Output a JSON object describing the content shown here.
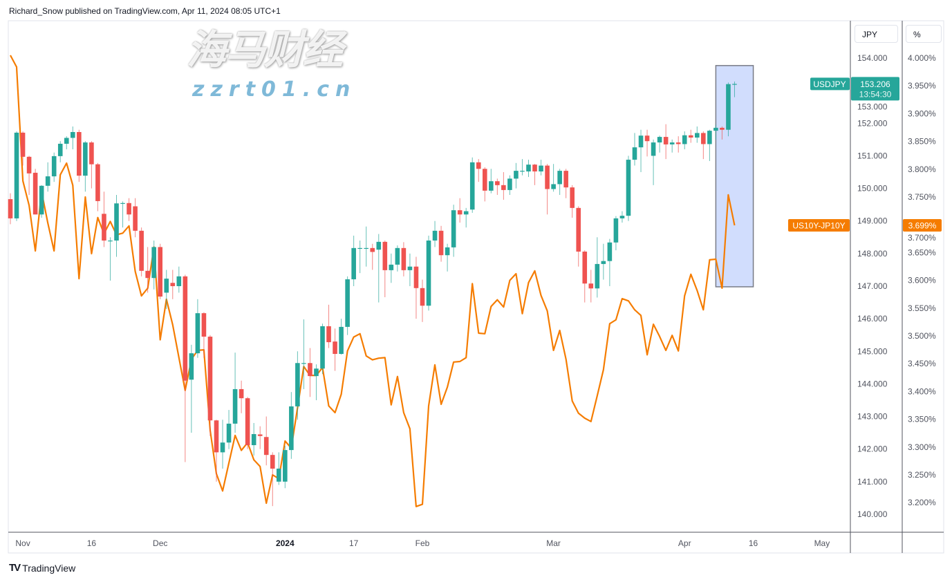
{
  "header": {
    "published": "Richard_Snow published on TradingView.com, Apr 11, 2024 08:05 UTC+1"
  },
  "footer": {
    "brand": "TradingView",
    "logo": "TV"
  },
  "watermark": {
    "cn": "海马财经",
    "url": "zzrt01.cn"
  },
  "colors": {
    "up": "#26a69a",
    "down": "#ef5350",
    "spread_line": "#f57c00",
    "range_fill": "#d1ddfd",
    "range_border": "#787b86"
  },
  "chart_data": {
    "type": "candlestick+line",
    "timeframe": "1D",
    "grid": false,
    "series": [
      {
        "name": "USDJPY",
        "type": "candlestick",
        "axis": "JPY",
        "last_price_label": "153.206",
        "countdown": "13:54:30"
      },
      {
        "name": "US10Y-JP10Y",
        "type": "line",
        "axis": "%",
        "last_value_label": "3.699%"
      }
    ],
    "axes": {
      "left_price": {
        "unit": "JPY",
        "range": [
          140,
          154
        ],
        "ticks": [
          "154.000",
          "153.000",
          "152.000",
          "151.000",
          "150.000",
          "149.000",
          "148.000",
          "147.000",
          "146.000",
          "145.000",
          "144.000",
          "143.000",
          "142.000",
          "141.000",
          "140.000"
        ]
      },
      "right_pct": {
        "unit": "%",
        "range": [
          3.2,
          4.0
        ],
        "ticks": [
          "4.000%",
          "3.950%",
          "3.900%",
          "3.850%",
          "3.800%",
          "3.750%",
          "3.700%",
          "3.650%",
          "3.600%",
          "3.550%",
          "3.500%",
          "3.450%",
          "3.400%",
          "3.350%",
          "3.300%",
          "3.250%",
          "3.200%"
        ]
      },
      "time_ticks": [
        {
          "label": "Nov",
          "date": "2023-11-01"
        },
        {
          "label": "16",
          "date": "2023-11-16"
        },
        {
          "label": "Dec",
          "date": "2023-12-01"
        },
        {
          "label": "2024",
          "date": "2024-01-02",
          "bold": true
        },
        {
          "label": "17",
          "date": "2024-01-17"
        },
        {
          "label": "Feb",
          "date": "2024-02-01"
        },
        {
          "label": "Mar",
          "date": "2024-03-01"
        },
        {
          "label": "Apr",
          "date": "2024-04-01"
        },
        {
          "label": "16",
          "date": "2024-04-16"
        },
        {
          "label": "May",
          "date": "2024-05-01"
        }
      ]
    },
    "range_box": {
      "from": "2024-04-08",
      "to": "2024-04-16",
      "price_top": 153.77,
      "price_bottom": 146.98
    },
    "dates": [
      "2023-10-30",
      "2023-10-31",
      "2023-11-01",
      "2023-11-02",
      "2023-11-03",
      "2023-11-06",
      "2023-11-07",
      "2023-11-08",
      "2023-11-09",
      "2023-11-10",
      "2023-11-13",
      "2023-11-14",
      "2023-11-15",
      "2023-11-16",
      "2023-11-17",
      "2023-11-20",
      "2023-11-21",
      "2023-11-22",
      "2023-11-23",
      "2023-11-24",
      "2023-11-27",
      "2023-11-28",
      "2023-11-29",
      "2023-11-30",
      "2023-12-01",
      "2023-12-04",
      "2023-12-05",
      "2023-12-06",
      "2023-12-07",
      "2023-12-08",
      "2023-12-11",
      "2023-12-12",
      "2023-12-13",
      "2023-12-14",
      "2023-12-15",
      "2023-12-18",
      "2023-12-19",
      "2023-12-20",
      "2023-12-21",
      "2023-12-22",
      "2023-12-26",
      "2023-12-27",
      "2023-12-28",
      "2023-12-29",
      "2024-01-02",
      "2024-01-03",
      "2024-01-04",
      "2024-01-05",
      "2024-01-08",
      "2024-01-09",
      "2024-01-10",
      "2024-01-11",
      "2024-01-12",
      "2024-01-15",
      "2024-01-16",
      "2024-01-17",
      "2024-01-18",
      "2024-01-19",
      "2024-01-22",
      "2024-01-23",
      "2024-01-24",
      "2024-01-25",
      "2024-01-26",
      "2024-01-29",
      "2024-01-30",
      "2024-01-31",
      "2024-02-01",
      "2024-02-02",
      "2024-02-05",
      "2024-02-06",
      "2024-02-07",
      "2024-02-08",
      "2024-02-09",
      "2024-02-12",
      "2024-02-13",
      "2024-02-14",
      "2024-02-15",
      "2024-02-16",
      "2024-02-19",
      "2024-02-20",
      "2024-02-21",
      "2024-02-22",
      "2024-02-23",
      "2024-02-26",
      "2024-02-27",
      "2024-02-28",
      "2024-02-29",
      "2024-03-01",
      "2024-03-04",
      "2024-03-05",
      "2024-03-06",
      "2024-03-07",
      "2024-03-08",
      "2024-03-11",
      "2024-03-12",
      "2024-03-13",
      "2024-03-14",
      "2024-03-15",
      "2024-03-18",
      "2024-03-19",
      "2024-03-20",
      "2024-03-21",
      "2024-03-22",
      "2024-03-25",
      "2024-03-26",
      "2024-03-27",
      "2024-03-28",
      "2024-03-29",
      "2024-04-01",
      "2024-04-02",
      "2024-04-03",
      "2024-04-04",
      "2024-04-05",
      "2024-04-08",
      "2024-04-09",
      "2024-04-10",
      "2024-04-11"
    ],
    "usdjpy_ohlc": [
      [
        149.67,
        149.85,
        148.9,
        149.08
      ],
      [
        149.08,
        151.75,
        149.0,
        151.71
      ],
      [
        151.71,
        151.75,
        150.7,
        150.97
      ],
      [
        150.97,
        151.0,
        149.8,
        150.46
      ],
      [
        150.48,
        150.6,
        149.2,
        149.2
      ],
      [
        149.2,
        150.1,
        149.1,
        150.08
      ],
      [
        150.08,
        150.8,
        149.9,
        150.37
      ],
      [
        150.37,
        151.1,
        150.2,
        150.99
      ],
      [
        150.99,
        151.45,
        150.8,
        151.37
      ],
      [
        151.37,
        151.6,
        151.2,
        151.55
      ],
      [
        151.55,
        151.9,
        151.2,
        151.73
      ],
      [
        151.73,
        151.8,
        150.2,
        150.39
      ],
      [
        150.39,
        151.45,
        149.9,
        151.41
      ],
      [
        151.41,
        151.45,
        150.0,
        150.74
      ],
      [
        150.74,
        150.78,
        149.3,
        149.61
      ],
      [
        149.22,
        149.9,
        148.2,
        148.4
      ],
      [
        148.4,
        148.5,
        147.17,
        148.4
      ],
      [
        148.4,
        149.8,
        147.9,
        149.54
      ],
      [
        149.55,
        149.6,
        148.8,
        149.55
      ],
      [
        149.55,
        149.7,
        149.0,
        149.2
      ],
      [
        149.45,
        149.7,
        148.5,
        148.7
      ],
      [
        148.7,
        148.8,
        147.3,
        147.47
      ],
      [
        147.47,
        148.2,
        146.8,
        147.25
      ],
      [
        147.25,
        148.4,
        146.9,
        148.2
      ],
      [
        148.2,
        148.3,
        146.6,
        146.68
      ],
      [
        146.8,
        147.5,
        146.3,
        147.23
      ],
      [
        147.1,
        147.5,
        146.6,
        147.0
      ],
      [
        147.0,
        147.6,
        146.8,
        147.3
      ],
      [
        147.3,
        147.35,
        141.6,
        144.1
      ],
      [
        144.13,
        145.2,
        142.5,
        144.94
      ],
      [
        144.94,
        146.6,
        144.8,
        146.17
      ],
      [
        146.17,
        146.2,
        144.8,
        145.45
      ],
      [
        145.45,
        145.5,
        142.4,
        142.88
      ],
      [
        142.88,
        142.9,
        141.0,
        141.9
      ],
      [
        141.9,
        142.9,
        141.4,
        142.2
      ],
      [
        142.2,
        143.2,
        142.0,
        142.78
      ],
      [
        142.78,
        144.96,
        142.5,
        143.84
      ],
      [
        143.84,
        144.1,
        143.1,
        143.56
      ],
      [
        143.56,
        143.6,
        142.0,
        142.12
      ],
      [
        142.12,
        142.8,
        141.8,
        142.46
      ],
      [
        142.45,
        142.7,
        142.0,
        142.4
      ],
      [
        142.37,
        143.0,
        141.5,
        141.82
      ],
      [
        141.82,
        141.9,
        140.25,
        141.4
      ],
      [
        141.0,
        141.9,
        140.9,
        141.4
      ],
      [
        141.0,
        142.1,
        140.8,
        141.97
      ],
      [
        141.97,
        143.75,
        141.7,
        143.31
      ],
      [
        143.31,
        145.0,
        142.9,
        144.64
      ],
      [
        144.64,
        145.98,
        143.84,
        144.64
      ],
      [
        144.64,
        145.1,
        143.6,
        144.24
      ],
      [
        144.24,
        144.6,
        143.5,
        144.47
      ],
      [
        144.47,
        145.85,
        144.3,
        145.77
      ],
      [
        145.77,
        146.43,
        145.1,
        145.28
      ],
      [
        145.3,
        145.7,
        144.4,
        144.92
      ],
      [
        144.92,
        146.0,
        144.9,
        145.75
      ],
      [
        145.75,
        147.3,
        145.5,
        147.21
      ],
      [
        147.21,
        148.55,
        147.0,
        148.17
      ],
      [
        148.17,
        148.4,
        147.4,
        148.17
      ],
      [
        148.17,
        148.83,
        147.6,
        148.17
      ],
      [
        148.17,
        148.3,
        147.5,
        148.05
      ],
      [
        148.12,
        148.6,
        146.5,
        148.36
      ],
      [
        148.36,
        148.4,
        146.66,
        147.49
      ],
      [
        147.49,
        148.0,
        147.1,
        147.66
      ],
      [
        147.66,
        148.25,
        147.45,
        148.17
      ],
      [
        148.17,
        148.35,
        147.3,
        147.49
      ],
      [
        147.49,
        148.0,
        147.0,
        147.6
      ],
      [
        147.6,
        147.9,
        146.0,
        146.94
      ],
      [
        146.94,
        147.2,
        145.9,
        146.4
      ],
      [
        146.4,
        148.55,
        146.25,
        148.4
      ],
      [
        148.4,
        149.0,
        148.2,
        148.7
      ],
      [
        148.7,
        148.85,
        147.75,
        147.95
      ],
      [
        147.95,
        148.3,
        147.45,
        148.19
      ],
      [
        148.19,
        149.5,
        147.9,
        149.33
      ],
      [
        149.33,
        149.7,
        148.95,
        149.2
      ],
      [
        149.2,
        149.4,
        148.8,
        149.3
      ],
      [
        149.35,
        150.95,
        149.25,
        150.8
      ],
      [
        150.8,
        150.9,
        150.2,
        150.6
      ],
      [
        150.6,
        150.65,
        149.6,
        149.93
      ],
      [
        149.93,
        150.6,
        149.85,
        150.22
      ],
      [
        150.22,
        150.3,
        149.8,
        150.1
      ],
      [
        150.1,
        150.5,
        149.65,
        149.95
      ],
      [
        149.95,
        150.4,
        149.8,
        150.3
      ],
      [
        150.3,
        150.78,
        150.0,
        150.54
      ],
      [
        150.54,
        150.9,
        150.4,
        150.54
      ],
      [
        150.52,
        150.88,
        150.35,
        150.73
      ],
      [
        150.73,
        150.75,
        150.1,
        150.52
      ],
      [
        150.52,
        150.88,
        150.4,
        150.7
      ],
      [
        150.7,
        150.75,
        149.2,
        149.98
      ],
      [
        149.98,
        150.75,
        149.9,
        150.13
      ],
      [
        150.13,
        150.6,
        149.8,
        150.54
      ],
      [
        150.54,
        150.6,
        149.7,
        150.03
      ],
      [
        150.03,
        150.1,
        149.1,
        149.4
      ],
      [
        149.4,
        149.45,
        147.6,
        148.06
      ],
      [
        148.06,
        148.1,
        146.5,
        147.08
      ],
      [
        147.08,
        147.5,
        146.5,
        146.93
      ],
      [
        146.93,
        148.5,
        146.65,
        147.68
      ],
      [
        147.68,
        148.3,
        147.2,
        147.77
      ],
      [
        147.77,
        148.45,
        147.0,
        148.34
      ],
      [
        148.34,
        149.15,
        148.1,
        149.08
      ],
      [
        149.08,
        149.3,
        148.95,
        149.16
      ],
      [
        149.16,
        151.0,
        149.0,
        150.88
      ],
      [
        150.88,
        151.7,
        150.7,
        151.26
      ],
      [
        151.26,
        151.8,
        150.5,
        151.62
      ],
      [
        151.62,
        151.8,
        150.98,
        151.45
      ],
      [
        151.0,
        151.5,
        150.1,
        151.41
      ],
      [
        151.41,
        151.62,
        151.1,
        151.58
      ],
      [
        151.58,
        151.97,
        150.9,
        151.35
      ],
      [
        151.35,
        151.5,
        151.1,
        151.41
      ],
      [
        151.41,
        151.6,
        151.1,
        151.36
      ],
      [
        151.36,
        151.75,
        151.2,
        151.63
      ],
      [
        151.63,
        151.8,
        151.4,
        151.56
      ],
      [
        151.56,
        151.9,
        151.4,
        151.7
      ],
      [
        151.7,
        151.75,
        150.9,
        151.36
      ],
      [
        151.36,
        151.8,
        150.84,
        151.77
      ],
      [
        151.77,
        151.95,
        151.5,
        151.86
      ],
      [
        151.86,
        151.9,
        151.5,
        151.8
      ],
      [
        151.8,
        153.25,
        151.6,
        153.2
      ],
      [
        153.2,
        153.28,
        152.8,
        153.206
      ]
    ],
    "spread_pct": [
      4.005,
      3.984,
      3.779,
      3.735,
      3.653,
      3.76,
      3.703,
      3.653,
      3.79,
      3.811,
      3.771,
      3.603,
      3.75,
      3.648,
      3.713,
      3.684,
      3.706,
      3.682,
      3.685,
      3.698,
      3.616,
      3.572,
      3.586,
      3.66,
      3.493,
      3.566,
      3.52,
      3.461,
      3.402,
      3.458,
      3.474,
      3.475,
      3.33,
      3.252,
      3.221,
      3.271,
      3.321,
      3.294,
      3.308,
      3.277,
      3.265,
      3.199,
      3.25,
      3.243,
      3.311,
      3.298,
      3.371,
      3.445,
      3.429,
      3.429,
      3.443,
      3.374,
      3.362,
      3.395,
      3.473,
      3.498,
      3.504,
      3.464,
      3.457,
      3.46,
      3.461,
      3.376,
      3.427,
      3.362,
      3.333,
      3.193,
      3.197,
      3.374,
      3.448,
      3.377,
      3.408,
      3.453,
      3.454,
      3.461,
      3.594,
      3.505,
      3.504,
      3.553,
      3.565,
      3.552,
      3.6,
      3.612,
      3.54,
      3.596,
      3.617,
      3.573,
      3.545,
      3.474,
      3.51,
      3.458,
      3.383,
      3.361,
      3.352,
      3.346,
      3.392,
      3.439,
      3.522,
      3.529,
      3.567,
      3.563,
      3.547,
      3.537,
      3.466,
      3.521,
      3.499,
      3.474,
      3.501,
      3.473,
      3.572,
      3.611,
      3.582,
      3.547,
      3.637,
      3.638,
      3.586,
      3.754,
      3.699
    ]
  }
}
